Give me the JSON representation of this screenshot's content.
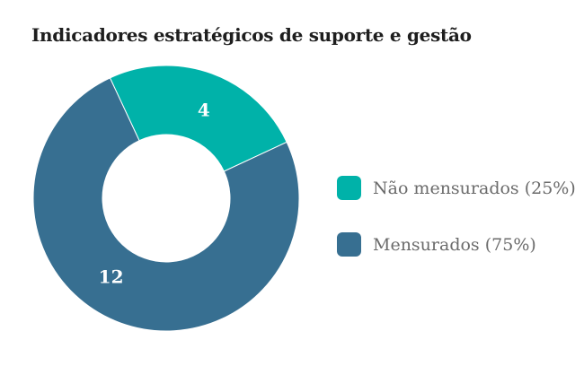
{
  "chart_data": {
    "type": "pie",
    "subtype": "donut",
    "title": "Indicadores estratégicos de suporte e gestão",
    "title_color": "#1e1e1e",
    "background": "#ffffff",
    "total": 16,
    "start_angle": -25,
    "legend_position": "right",
    "data_label_color": "#ffffff",
    "legend_text_color": "#6b6b6b",
    "series": [
      {
        "name": "Não mensurados",
        "value": 4,
        "percent": 25,
        "color": "#00b2a9",
        "data_label": "4",
        "legend_label": "Não mensurados (25%)"
      },
      {
        "name": "Mensurados",
        "value": 12,
        "percent": 75,
        "color": "#376f91",
        "data_label": "12",
        "legend_label": "Mensurados (75%)"
      }
    ]
  }
}
